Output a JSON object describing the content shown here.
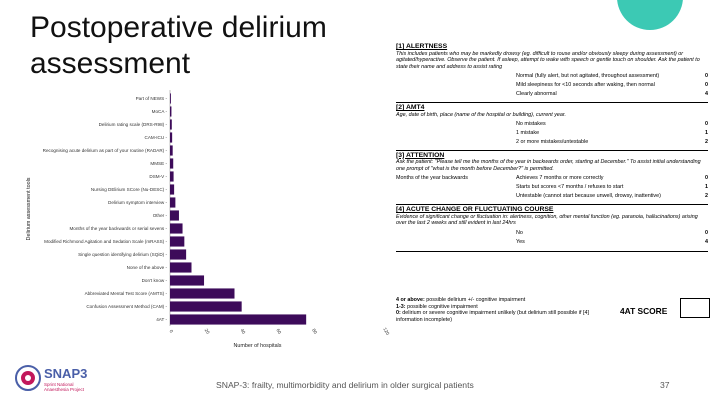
{
  "slide": {
    "title": "Postoperative delirium assessment",
    "footer": "SNAP-3: frailty, multimorbidity and delirium in older surgical patients",
    "page_number": "37",
    "logo": {
      "main": "SNAP3",
      "line1": "Sprint National",
      "line2": "Anaesthesia Project"
    }
  },
  "colors": {
    "bar": "#3d0b5a",
    "accent_circle": "#3cc9b4",
    "logo_blue": "#4a5fa8",
    "logo_pink": "#c2185b"
  },
  "chart_data": {
    "type": "bar",
    "orientation": "horizontal",
    "ylabel": "Delirium assessment tools",
    "xlabel": "Number of hospitals",
    "xlim": [
      0,
      120
    ],
    "xticks": [
      0,
      20,
      40,
      60,
      80,
      120
    ],
    "categories": [
      "Part of NEWS",
      "MoCA",
      "Delirium rating scale (DRS-R98)",
      "CAM-ICU",
      "Recognising acute delirium as part of your routine (RADAR)",
      "MMSE",
      "DSM-V",
      "Nursing DElirium SCore (Nu-DESC)",
      "Delirium symptom interview",
      "Other",
      "Months of the year backwards or serial sevens",
      "Modified Richmond Agitation and Sedation Scale (mRASS)",
      "Single question identifying delirium (SQiD)",
      "None of the above",
      "Don't know",
      "Abbreviated Mental Test Score (AMTS)",
      "Confusion Assessment Method (CAM)",
      "4AT"
    ],
    "values": [
      0.5,
      0.8,
      1,
      1.2,
      1.5,
      1.8,
      2,
      2.3,
      3,
      5,
      7,
      8,
      9,
      12,
      19,
      36,
      40,
      76
    ]
  },
  "form": {
    "sections": [
      {
        "title": "[1] ALERTNESS",
        "desc": "This includes patients who may be markedly drowsy (eg. difficult to rouse and/or obviously sleepy during assessment) or agitated/hyperactive. Observe the patient. If asleep, attempt to wake with speech or gentle touch on shoulder. Ask the patient to state their name and address to assist rating",
        "rows": [
          {
            "label": "Normal (fully alert, but not agitated, throughout assessment)",
            "score": "0"
          },
          {
            "label": "Mild sleepiness for <10 seconds after waking, then normal",
            "score": "0"
          },
          {
            "label": "Clearly abnormal",
            "score": "4"
          }
        ]
      },
      {
        "title": "[2] AMT4",
        "desc": "Age, date of birth, place (name of the hospital or building), current year.",
        "rows": [
          {
            "label": "No mistakes",
            "score": "0"
          },
          {
            "label": "1 mistake",
            "score": "1"
          },
          {
            "label": "2 or more mistakes/untestable",
            "score": "2"
          }
        ]
      },
      {
        "title": "[3] ATTENTION",
        "desc": "Ask the patient: \"Please tell me the months of the year in backwards order, starting at December.\" To assist initial understanding one prompt of \"what is the month before December?\" is permitted.",
        "row_label": "Months of the year backwards",
        "rows": [
          {
            "label": "Achieves 7 months or more correctly",
            "score": "0"
          },
          {
            "label": "Starts but scores <7 months / refuses to start",
            "score": "1"
          },
          {
            "label": "Untestable (cannot start because unwell, drowsy, inattentive)",
            "score": "2"
          }
        ]
      },
      {
        "title": "[4] ACUTE CHANGE OR FLUCTUATING COURSE",
        "desc": "Evidence of significant change or fluctuation in: alertness, cognition, other mental function (eg. paranoia, hallucinations) arising over the last 2 weeks and still evident in last 24hrs",
        "rows": [
          {
            "label": "No",
            "score": "0"
          },
          {
            "label": "Yes",
            "score": "4"
          }
        ]
      }
    ],
    "interpretation": [
      {
        "bold": "4 or above:",
        "text": " possible delirium +/- cognitive impairment"
      },
      {
        "bold": "1-3:",
        "text": " possible cognitive impairment"
      },
      {
        "bold": "0:",
        "text": " delirium or severe cognitive impairment unlikely (but delirium still possible if [4] information incomplete)"
      }
    ],
    "score_label": "4AT SCORE"
  }
}
